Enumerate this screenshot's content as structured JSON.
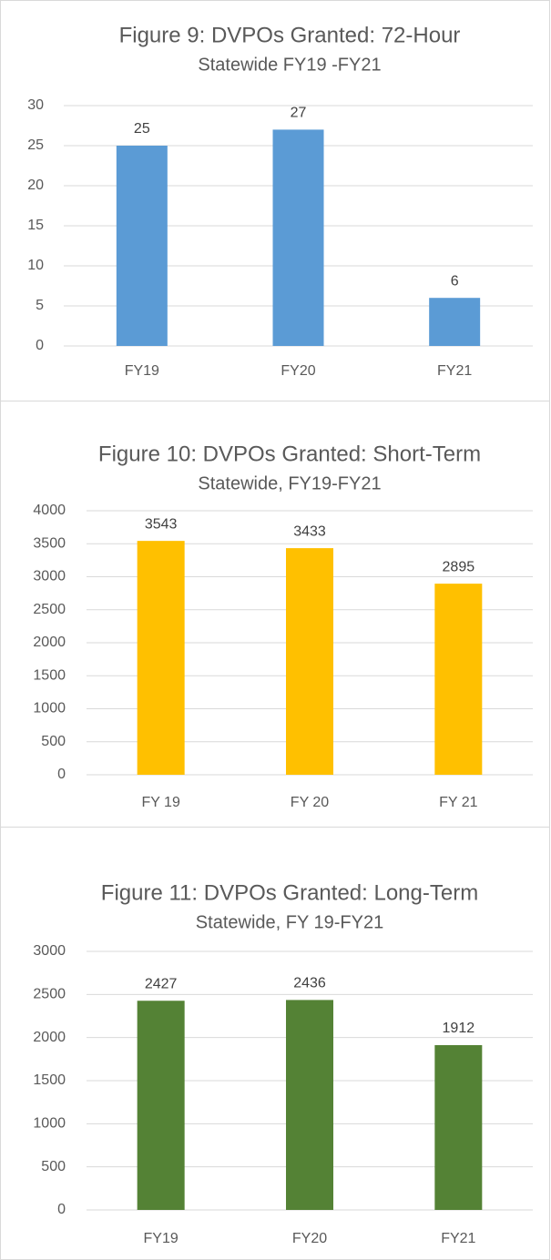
{
  "chart_data": [
    {
      "type": "bar",
      "title": "Figure 9: DVPOs Granted: 72-Hour",
      "subtitle": "Statewide FY19 -FY21",
      "categories": [
        "FY19",
        "FY20",
        "FY21"
      ],
      "values": [
        25,
        27,
        6
      ],
      "color": "#5b9bd5",
      "ylim": [
        0,
        30
      ],
      "yticks": [
        0,
        5,
        10,
        15,
        20,
        25,
        30
      ],
      "grid": true
    },
    {
      "type": "bar",
      "title": "Figure 10: DVPOs Granted: Short-Term",
      "subtitle": "Statewide, FY19-FY21",
      "categories": [
        "FY 19",
        "FY 20",
        "FY 21"
      ],
      "values": [
        3543,
        3433,
        2895
      ],
      "color": "#ffc000",
      "ylim": [
        0,
        4000
      ],
      "yticks": [
        0,
        500,
        1000,
        1500,
        2000,
        2500,
        3000,
        3500,
        4000
      ],
      "grid": true
    },
    {
      "type": "bar",
      "title": "Figure 11: DVPOs Granted: Long-Term",
      "subtitle": "Statewide, FY 19-FY21",
      "categories": [
        "FY19",
        "FY20",
        "FY21"
      ],
      "values": [
        2427,
        2436,
        1912
      ],
      "color": "#548235",
      "ylim": [
        0,
        3000
      ],
      "yticks": [
        0,
        500,
        1000,
        1500,
        2000,
        2500,
        3000
      ],
      "grid": true
    }
  ]
}
